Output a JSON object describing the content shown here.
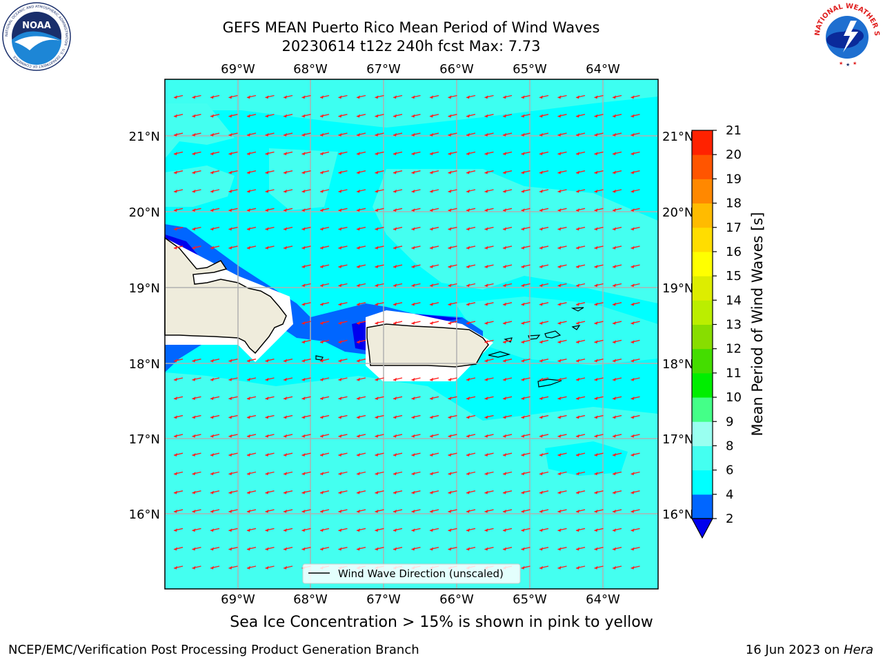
{
  "title": {
    "line1": "GEFS MEAN Puerto Rico Mean Period of Wind Waves",
    "line2": "20230614 t12z 240h fcst   Max: 7.73"
  },
  "map": {
    "lon_labels": [
      "69°W",
      "68°W",
      "67°W",
      "66°W",
      "65°W",
      "64°W"
    ],
    "lat_labels": [
      "21°N",
      "20°N",
      "19°N",
      "18°N",
      "17°N",
      "16°N"
    ],
    "legend_label": "Wind Wave Direction (unscaled)",
    "ocean_color": "#00ffff",
    "land_color": "#efecdc",
    "arrow_color": "#ff2020",
    "arrow_direction": "toward west-southwest"
  },
  "colorbar": {
    "label": "Mean Period of Wind Waves [s]",
    "ticks": [
      "2",
      "4",
      "6",
      "8",
      "9",
      "10",
      "11",
      "12",
      "13",
      "14",
      "15",
      "16",
      "17",
      "18",
      "19",
      "20",
      "21"
    ],
    "colors": [
      "#0066ff",
      "#00ffff",
      "#44fff0",
      "#99fff0",
      "#44ff88",
      "#00ee00",
      "#44dd00",
      "#88dd00",
      "#bbee00",
      "#dded00",
      "#ffff00",
      "#ffdd00",
      "#ffbb00",
      "#ff8800",
      "#ff5500",
      "#ff2200"
    ],
    "extend_color": "#0000ee"
  },
  "note": "Sea Ice Concentration > 15% is shown in pink to yellow",
  "footer": {
    "left": "NCEP/EMC/Verification Post Processing Product Generation Branch",
    "right_date": "16 Jun 2023 on ",
    "right_machine": "Hera"
  },
  "logos": {
    "left_text": "NOAA",
    "left_ring_text": "NATIONAL OCEANIC AND ATMOSPHERIC ADMINISTRATION · U.S. DEPARTMENT OF COMMERCE",
    "right_ring_text": "NATIONAL WEATHER SERVICE"
  }
}
